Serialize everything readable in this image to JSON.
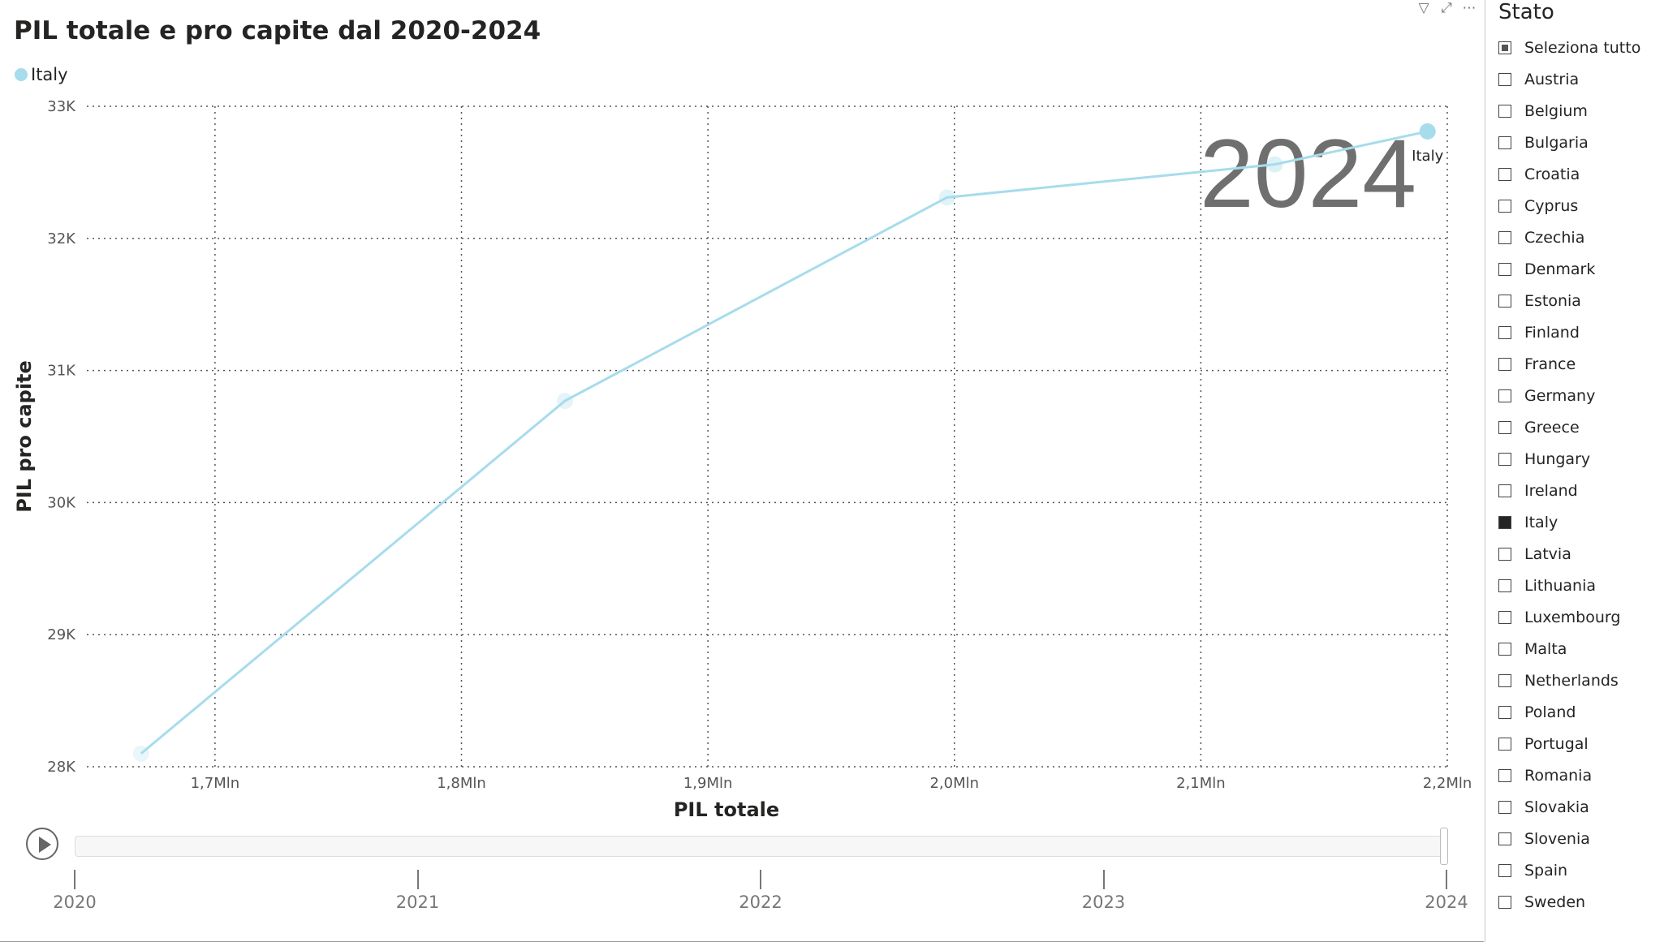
{
  "visual": {
    "title": "PIL totale e pro capite dal 2020-2024",
    "legend_label": "Italy",
    "header_icons": [
      "filter-icon",
      "focus-mode-icon",
      "more-options-icon"
    ]
  },
  "chart_data": {
    "type": "scatter",
    "title": "PIL totale e pro capite dal 2020-2024",
    "xlabel": "PIL totale",
    "ylabel": "PIL pro capite",
    "x_ticks": [
      "1,7Mln",
      "1,8Mln",
      "1,9Mln",
      "2,0Mln",
      "2,1Mln",
      "2,2Mln"
    ],
    "x_tick_values": [
      1700000,
      1800000,
      1900000,
      2000000,
      2100000,
      2200000
    ],
    "y_ticks": [
      "28K",
      "29K",
      "30K",
      "31K",
      "32K",
      "33K"
    ],
    "y_tick_values": [
      28000,
      29000,
      30000,
      31000,
      32000,
      33000
    ],
    "xlim": [
      1648000,
      2200000
    ],
    "ylim": [
      28000,
      33000
    ],
    "grid": true,
    "legend_position": "top-left",
    "series": [
      {
        "name": "Italy",
        "color": "#a7dcec",
        "years": [
          2020,
          2021,
          2022,
          2023,
          2024
        ],
        "x": [
          1670000,
          1842000,
          1997000,
          2130000,
          2192000
        ],
        "y": [
          28100,
          30770,
          32310,
          32560,
          32810
        ]
      }
    ],
    "play_axis_current": "2024",
    "point_label": "Italy"
  },
  "play_axis": {
    "years": [
      "2020",
      "2021",
      "2022",
      "2023",
      "2024"
    ],
    "current": "2024"
  },
  "slicer": {
    "title": "Stato",
    "items": [
      {
        "label": "Seleziona tutto",
        "state": "partial"
      },
      {
        "label": "Austria",
        "state": "off"
      },
      {
        "label": "Belgium",
        "state": "off"
      },
      {
        "label": "Bulgaria",
        "state": "off"
      },
      {
        "label": "Croatia",
        "state": "off"
      },
      {
        "label": "Cyprus",
        "state": "off"
      },
      {
        "label": "Czechia",
        "state": "off"
      },
      {
        "label": "Denmark",
        "state": "off"
      },
      {
        "label": "Estonia",
        "state": "off"
      },
      {
        "label": "Finland",
        "state": "off"
      },
      {
        "label": "France",
        "state": "off"
      },
      {
        "label": "Germany",
        "state": "off"
      },
      {
        "label": "Greece",
        "state": "off"
      },
      {
        "label": "Hungary",
        "state": "off"
      },
      {
        "label": "Ireland",
        "state": "off"
      },
      {
        "label": "Italy",
        "state": "on"
      },
      {
        "label": "Latvia",
        "state": "off"
      },
      {
        "label": "Lithuania",
        "state": "off"
      },
      {
        "label": "Luxembourg",
        "state": "off"
      },
      {
        "label": "Malta",
        "state": "off"
      },
      {
        "label": "Netherlands",
        "state": "off"
      },
      {
        "label": "Poland",
        "state": "off"
      },
      {
        "label": "Portugal",
        "state": "off"
      },
      {
        "label": "Romania",
        "state": "off"
      },
      {
        "label": "Slovakia",
        "state": "off"
      },
      {
        "label": "Slovenia",
        "state": "off"
      },
      {
        "label": "Spain",
        "state": "off"
      },
      {
        "label": "Sweden",
        "state": "off"
      }
    ]
  }
}
